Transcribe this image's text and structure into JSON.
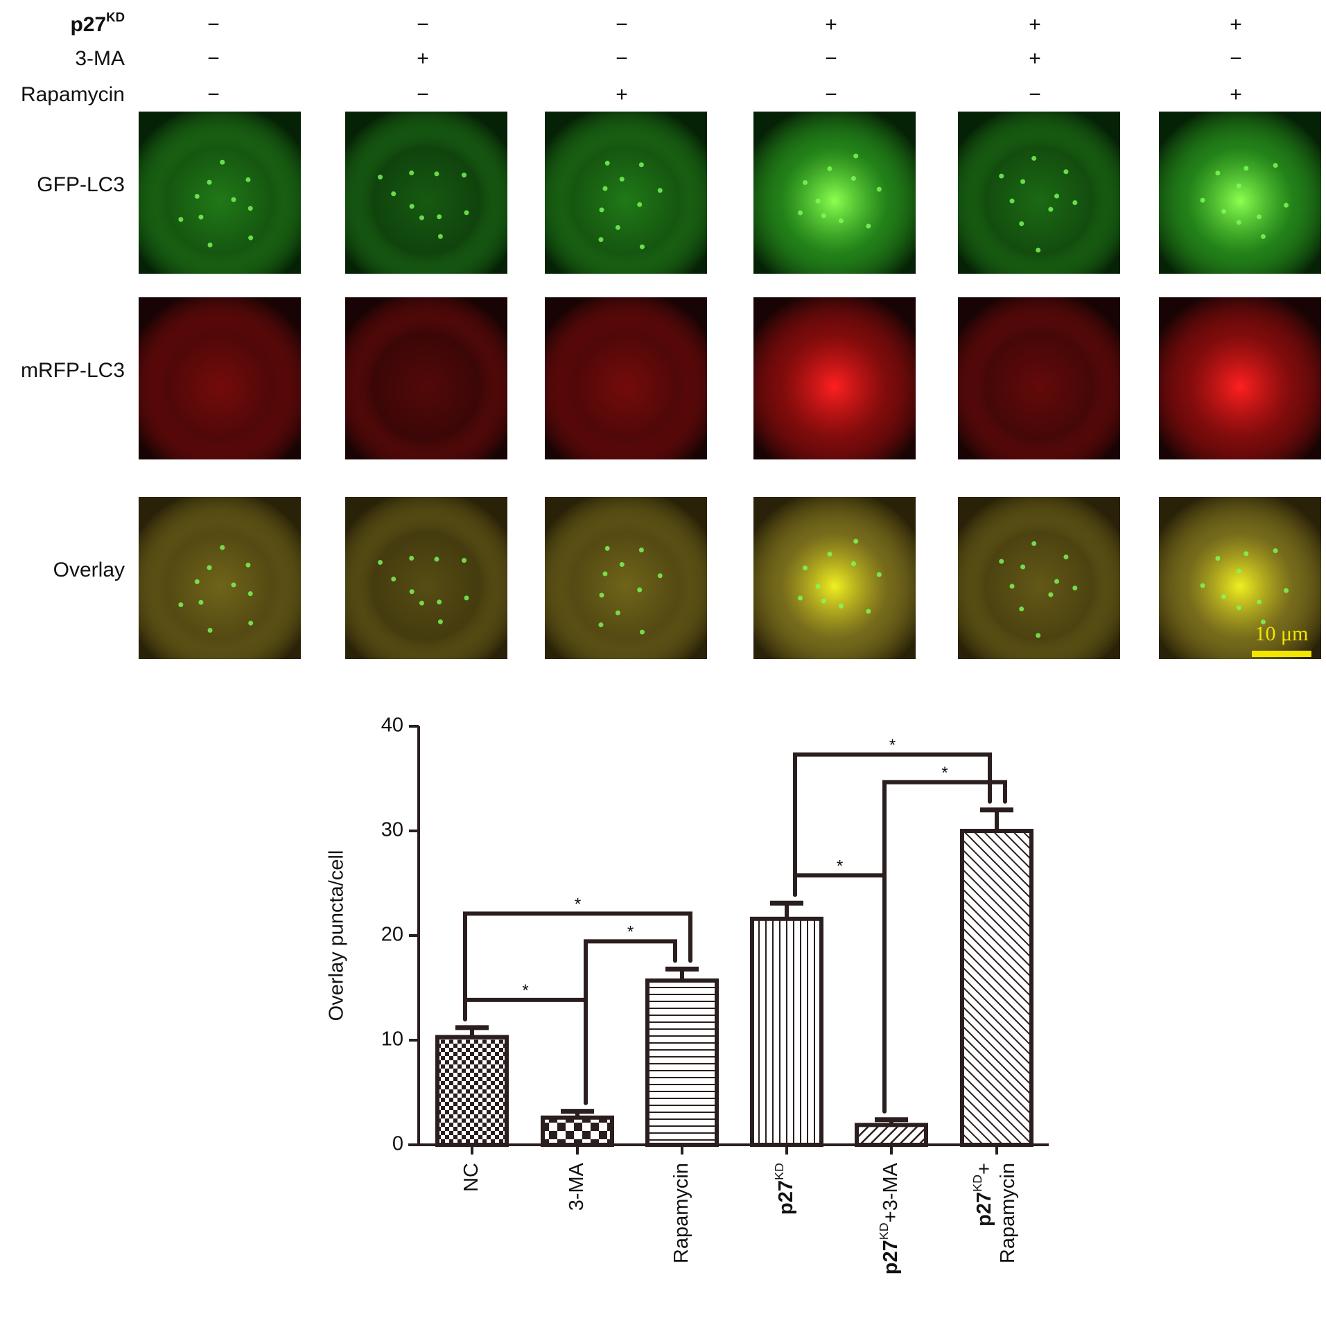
{
  "treatments": [
    {
      "label": [
        {
          "text": "p27"
        },
        {
          "text": "KD",
          "sup": true
        }
      ],
      "bold": true,
      "signs": [
        "−",
        "−",
        "−",
        "+",
        "+",
        "+"
      ]
    },
    {
      "label": [
        {
          "text": "3-MA"
        }
      ],
      "signs": [
        "−",
        "+",
        "−",
        "−",
        "+",
        "−"
      ]
    },
    {
      "label": [
        {
          "text": "Rapamycin"
        }
      ],
      "signs": [
        "−",
        "−",
        "+",
        "−",
        "−",
        "+"
      ]
    }
  ],
  "image_rows": [
    "GFP-LC3",
    "mRFP-LC3",
    "Overlay"
  ],
  "scale_bar": "10 μm",
  "chart_data": {
    "type": "bar",
    "ylabel": "Overlay puncta/cell",
    "categories": [
      [
        [
          {
            "text": "NC"
          }
        ]
      ],
      [
        [
          {
            "text": "3-MA"
          }
        ]
      ],
      [
        [
          {
            "text": "Rapamycin"
          }
        ]
      ],
      [
        [
          {
            "text": "p27",
            "bold": true
          },
          {
            "text": "KD",
            "sup": true
          }
        ]
      ],
      [
        [
          {
            "text": "p27",
            "bold": true
          },
          {
            "text": "KD",
            "sup": true
          },
          {
            "text": "+3-MA"
          }
        ]
      ],
      [
        [
          {
            "text": "p27",
            "bold": true
          },
          {
            "text": "KD",
            "sup": true
          },
          {
            "text": "+"
          }
        ],
        [
          {
            "text": "Rapamycin"
          }
        ]
      ]
    ],
    "series": [
      {
        "color": "#2b1e1e",
        "values": [
          10.3,
          2.6,
          15.7,
          21.6,
          1.9,
          30.0
        ],
        "errors": [
          0.9,
          0.6,
          1.1,
          1.5,
          0.5,
          2.0
        ]
      }
    ],
    "significance": [
      {
        "from": 0,
        "to": 1,
        "label": "*"
      },
      {
        "from": 1,
        "to": 2,
        "label": "*"
      },
      {
        "from": 0,
        "to": 2,
        "label": "*"
      },
      {
        "from": 3,
        "to": 4,
        "label": "*"
      },
      {
        "from": 4,
        "to": 5,
        "label": "*"
      },
      {
        "from": 3,
        "to": 5,
        "label": "*"
      }
    ],
    "ylim": [
      0,
      40
    ],
    "yticks": [
      0,
      10,
      20,
      30,
      40
    ]
  }
}
